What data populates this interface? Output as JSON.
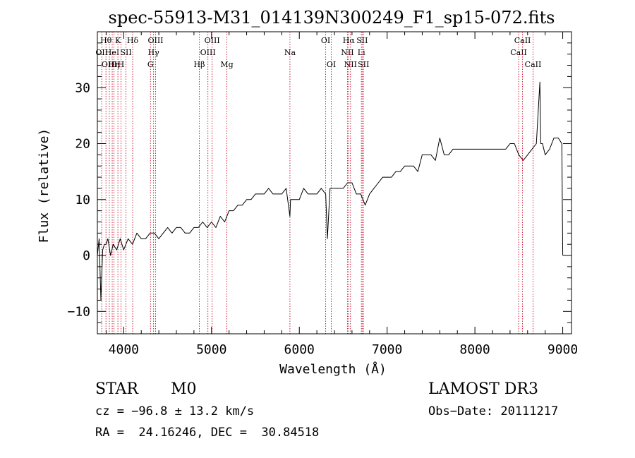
{
  "chart_data": {
    "type": "line",
    "title": "spec-55913-M31_014139N300249_F1_sp15-072.fits",
    "xlabel": "Wavelength (Å)",
    "ylabel": "Flux (relative)",
    "xlim": [
      3700,
      9100
    ],
    "ylim": [
      -14,
      40
    ],
    "xticks": [
      4000,
      5000,
      6000,
      7000,
      8000,
      9000
    ],
    "yticks": [
      -10,
      0,
      10,
      20,
      30
    ],
    "grid": false,
    "series": [
      {
        "name": "flux",
        "x": [
          3700,
          3720,
          3740,
          3760,
          3780,
          3800,
          3820,
          3850,
          3880,
          3920,
          3960,
          4000,
          4050,
          4100,
          4150,
          4200,
          4250,
          4300,
          4350,
          4400,
          4450,
          4500,
          4550,
          4600,
          4650,
          4700,
          4750,
          4800,
          4850,
          4900,
          4950,
          5000,
          5050,
          5100,
          5150,
          5200,
          5250,
          5300,
          5350,
          5400,
          5450,
          5500,
          5550,
          5600,
          5650,
          5700,
          5750,
          5800,
          5850,
          5893,
          5900,
          5950,
          6000,
          6050,
          6100,
          6150,
          6200,
          6250,
          6300,
          6320,
          6350,
          6400,
          6450,
          6500,
          6550,
          6563,
          6600,
          6650,
          6700,
          6750,
          6800,
          6850,
          6900,
          6950,
          7000,
          7050,
          7100,
          7150,
          7200,
          7250,
          7300,
          7350,
          7400,
          7450,
          7500,
          7550,
          7600,
          7650,
          7700,
          7750,
          7800,
          7850,
          7900,
          7950,
          8000,
          8050,
          8100,
          8150,
          8200,
          8250,
          8300,
          8350,
          8400,
          8450,
          8500,
          8550,
          8600,
          8650,
          8700,
          8740,
          8750,
          8770,
          8800,
          8850,
          8900,
          8950,
          8990,
          9000
        ],
        "y": [
          0,
          3,
          -8,
          1,
          2,
          2,
          3,
          0,
          2,
          1,
          3,
          1,
          3,
          2,
          4,
          3,
          3,
          4,
          4,
          3,
          4,
          5,
          4,
          5,
          5,
          4,
          4,
          5,
          5,
          6,
          5,
          6,
          5,
          7,
          6,
          8,
          8,
          9,
          9,
          10,
          10,
          11,
          11,
          11,
          12,
          11,
          11,
          11,
          12,
          7,
          10,
          10,
          10,
          12,
          11,
          11,
          11,
          12,
          11,
          3,
          12,
          12,
          12,
          12,
          13,
          13,
          13,
          11,
          11,
          9,
          11,
          12,
          13,
          14,
          14,
          14,
          15,
          15,
          16,
          16,
          16,
          15,
          18,
          18,
          18,
          17,
          21,
          18,
          18,
          19,
          19,
          19,
          19,
          19,
          19,
          19,
          19,
          19,
          19,
          19,
          19,
          19,
          20,
          20,
          18,
          17,
          18,
          19,
          20,
          31,
          20,
          20,
          18,
          19,
          21,
          21,
          20,
          0
        ]
      }
    ],
    "lines": [
      {
        "wl": 3750,
        "label": "OII",
        "row": 2
      },
      {
        "wl": 3798,
        "label": "Hθ",
        "row": 1
      },
      {
        "wl": 3836,
        "label": "OIII",
        "row": 3
      },
      {
        "wl": 3869,
        "label": "HeI",
        "row": 2
      },
      {
        "wl": 3889,
        "label": "Hη",
        "row": 3
      },
      {
        "wl": 3934,
        "label": "K",
        "row": 1
      },
      {
        "wl": 3969,
        "label": "H",
        "row": 3
      },
      {
        "wl": 4026,
        "label": "SII",
        "row": 2
      },
      {
        "wl": 4102,
        "label": "Hδ",
        "row": 1
      },
      {
        "wl": 4305,
        "label": "G",
        "row": 3
      },
      {
        "wl": 4340,
        "label": "Hγ",
        "row": 2
      },
      {
        "wl": 4363,
        "label": "OIII",
        "row": 1
      },
      {
        "wl": 4861,
        "label": "Hβ",
        "row": 3
      },
      {
        "wl": 4959,
        "label": "OIII",
        "row": 2
      },
      {
        "wl": 5007,
        "label": "OIII",
        "row": 1
      },
      {
        "wl": 5175,
        "label": "Mg",
        "row": 3
      },
      {
        "wl": 5893,
        "label": "Na",
        "row": 2
      },
      {
        "wl": 6300,
        "label": "OI",
        "row": 1
      },
      {
        "wl": 6364,
        "label": "OI",
        "row": 3
      },
      {
        "wl": 6548,
        "label": "NII",
        "row": 2
      },
      {
        "wl": 6563,
        "label": "Hα",
        "row": 1
      },
      {
        "wl": 6583,
        "label": "NII",
        "row": 3
      },
      {
        "wl": 6707,
        "label": "Li",
        "row": 2
      },
      {
        "wl": 6716,
        "label": "SII",
        "row": 1
      },
      {
        "wl": 6731,
        "label": "SII",
        "row": 3
      },
      {
        "wl": 8498,
        "label": "CaII",
        "row": 2
      },
      {
        "wl": 8542,
        "label": "CaII",
        "row": 1
      },
      {
        "wl": 8662,
        "label": "CaII",
        "row": 3
      }
    ]
  },
  "info": {
    "object_class": "STAR",
    "subclass": "M0",
    "survey": "LAMOST DR3",
    "velocity": "cz = −96.8 ± 13.2 km/s",
    "obs_date": "Obs−Date: 20111217",
    "coords": "RA =  24.16246, DEC =  30.84518"
  }
}
